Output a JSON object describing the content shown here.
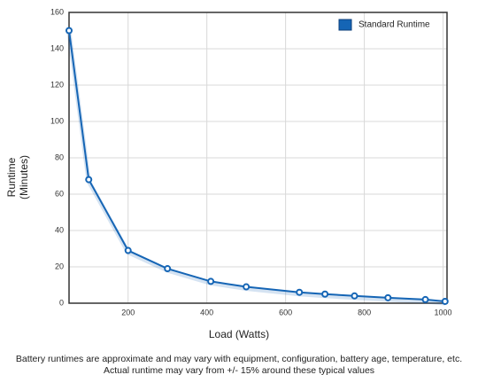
{
  "chart_data": {
    "type": "line",
    "y_label": [
      "Runtime",
      "(Minutes)"
    ],
    "x_label": "Load (Watts)",
    "footnote": [
      "Battery runtimes are approximate and may vary with equipment, configuration, battery age, temperature, etc.",
      "Actual runtime may vary from +/- 15% around these typical values"
    ],
    "x": [
      50,
      100,
      200,
      300,
      410,
      500,
      635,
      700,
      775,
      860,
      955,
      1005
    ],
    "series": [
      {
        "name": "Standard Runtime",
        "color": "#1565b5",
        "values": [
          150,
          68,
          29,
          19,
          12,
          9,
          6,
          5,
          4,
          3,
          2,
          1
        ]
      }
    ],
    "xlim": [
      50,
      1010
    ],
    "xticks": [
      200,
      400,
      600,
      800,
      1000
    ],
    "ylim": [
      0,
      160
    ],
    "yticks": [
      0,
      20,
      40,
      60,
      80,
      100,
      120,
      140,
      160
    ],
    "grid": true,
    "legend": "top-right"
  }
}
